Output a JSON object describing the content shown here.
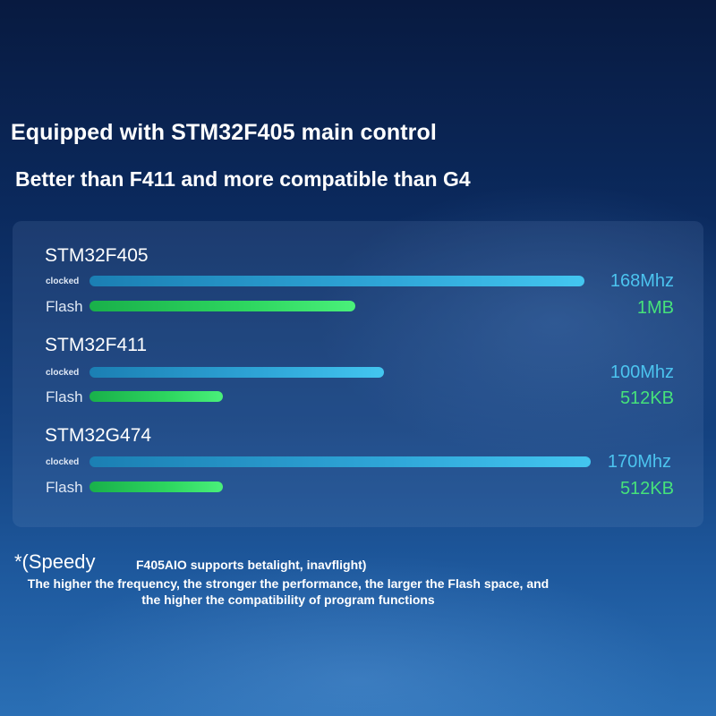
{
  "heading": {
    "line1": "Equipped with STM32F405 main control",
    "line2": "Better than F411 and more compatible than G4"
  },
  "chart_data": {
    "type": "bar",
    "orientation": "horizontal",
    "groups": [
      {
        "name": "STM32F405",
        "rows": [
          {
            "label": "clocked",
            "value": 168,
            "display": "168Mhz",
            "kind": "clock"
          },
          {
            "label": "Flash",
            "value": 1024,
            "display": "1MB",
            "kind": "flash"
          }
        ]
      },
      {
        "name": "STM32F411",
        "rows": [
          {
            "label": "clocked",
            "value": 100,
            "display": "100Mhz",
            "kind": "clock"
          },
          {
            "label": "Flash",
            "value": 512,
            "display": "512KB",
            "kind": "flash"
          }
        ]
      },
      {
        "name": "STM32G474",
        "rows": [
          {
            "label": "clocked",
            "value": 170,
            "display": "170Mhz",
            "kind": "clock"
          },
          {
            "label": "Flash",
            "value": 512,
            "display": "512KB",
            "kind": "flash"
          }
        ]
      }
    ],
    "colors": {
      "clock": "#2fa6d8",
      "flash": "#2ed760"
    }
  },
  "footnote": {
    "prefix": "*(Speedy",
    "support": "F405AIO supports betalight, inavflight)",
    "note": "The higher the frequency, the stronger the performance, the larger the Flash space, and the higher the compatibility of program functions"
  }
}
